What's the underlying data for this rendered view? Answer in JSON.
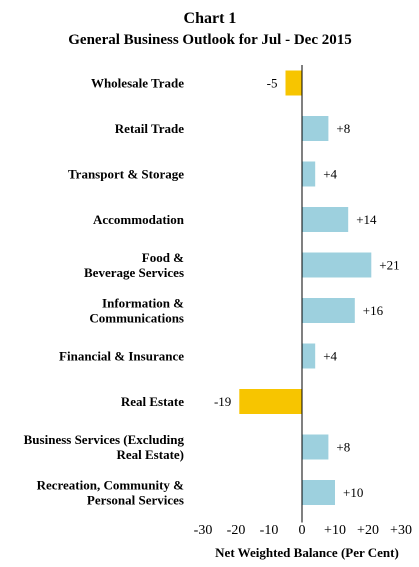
{
  "chart_data": {
    "type": "bar",
    "orientation": "horizontal",
    "title_line1": "Chart  1",
    "title_line2": "General Business Outlook for Jul - Dec 2015",
    "xlabel": "Net Weighted Balance (Per Cent)",
    "xlim": [
      -30,
      30
    ],
    "xticks": [
      "-30",
      "-20",
      "-10",
      "0",
      "+10",
      "+20",
      "+30"
    ],
    "grid": false,
    "categories": [
      [
        "Wholesale Trade"
      ],
      [
        "Retail Trade"
      ],
      [
        "Transport & Storage"
      ],
      [
        "Accommodation"
      ],
      [
        "Food &",
        "Beverage Services"
      ],
      [
        "Information &",
        "Communications"
      ],
      [
        "Financial & Insurance"
      ],
      [
        "Real Estate"
      ],
      [
        "Business Services (Excluding",
        "Real Estate)"
      ],
      [
        "Recreation, Community &",
        "Personal Services"
      ]
    ],
    "values": [
      -5,
      8,
      4,
      14,
      21,
      16,
      4,
      -19,
      8,
      10
    ],
    "value_labels": [
      "-5",
      "+8",
      "+4",
      "+14",
      "+21",
      "+16",
      "+4",
      "-19",
      "+8",
      "+10"
    ],
    "colors": {
      "positive": "#9dd0de",
      "negative": "#f7c500",
      "axis": "#000000"
    }
  }
}
